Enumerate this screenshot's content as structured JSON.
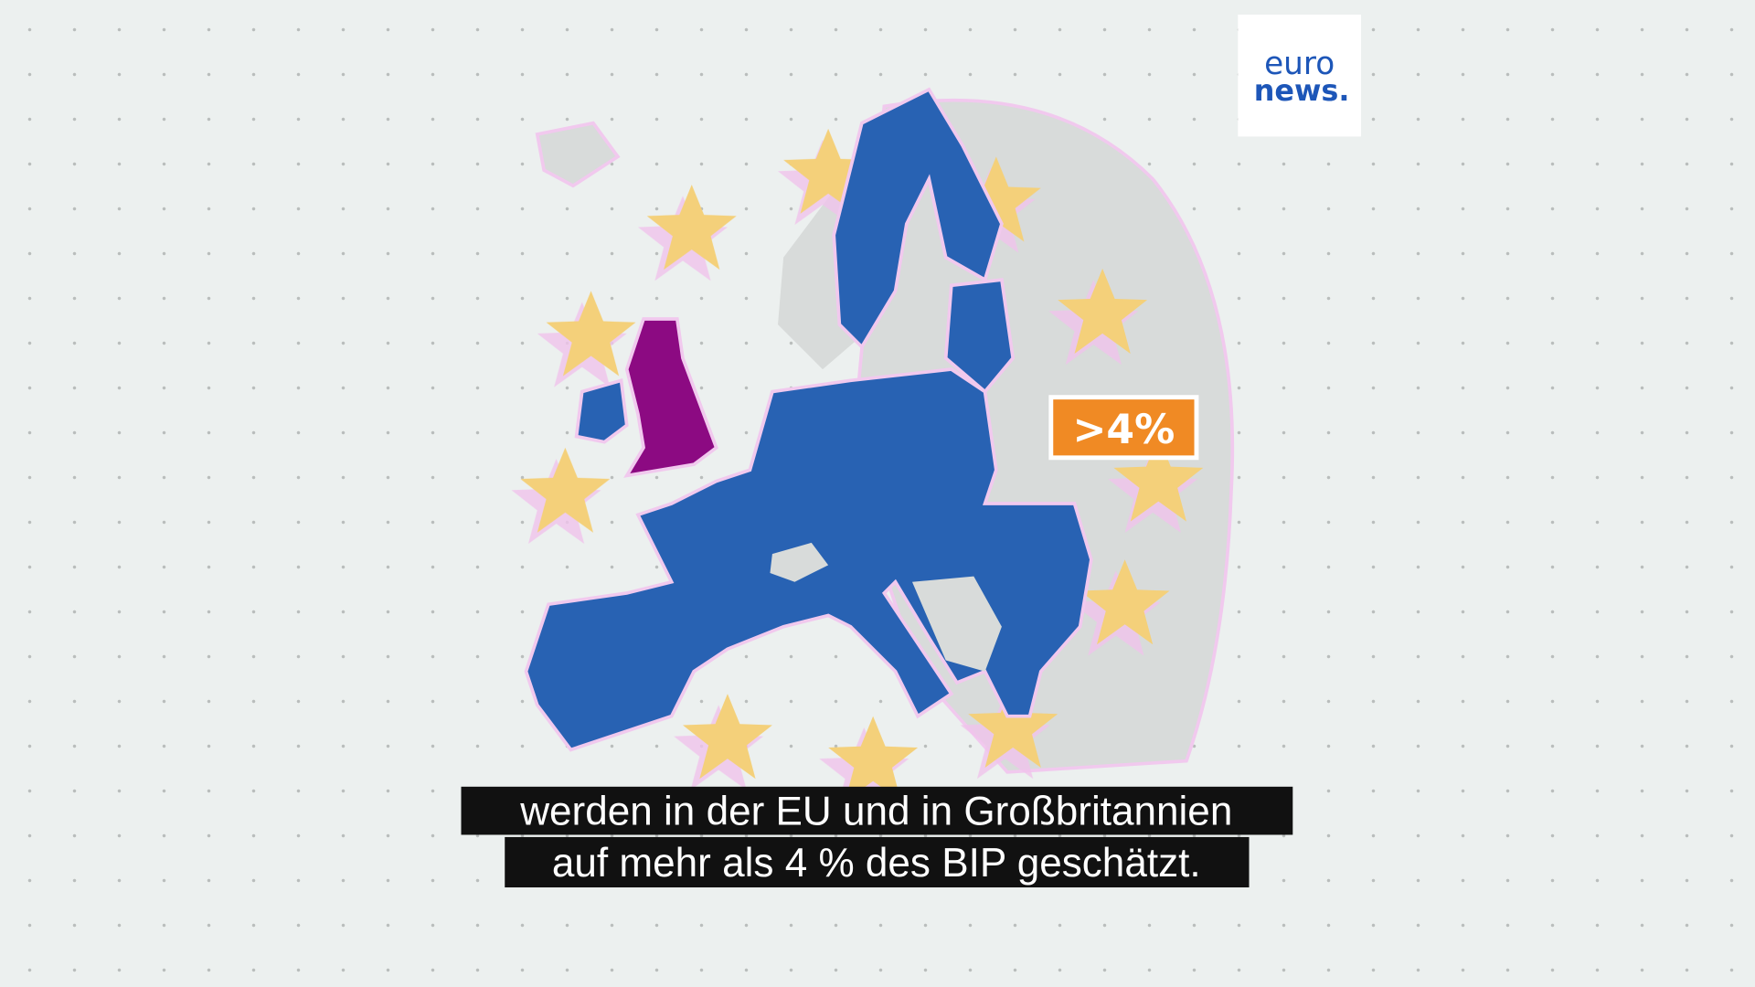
{
  "logo": {
    "line1": "euro",
    "line2": "news."
  },
  "badge": ">4%",
  "subtitles": [
    "werden in der EU und in Großbritannien",
    "auf mehr als 4 % des BIP geschätzt."
  ]
}
